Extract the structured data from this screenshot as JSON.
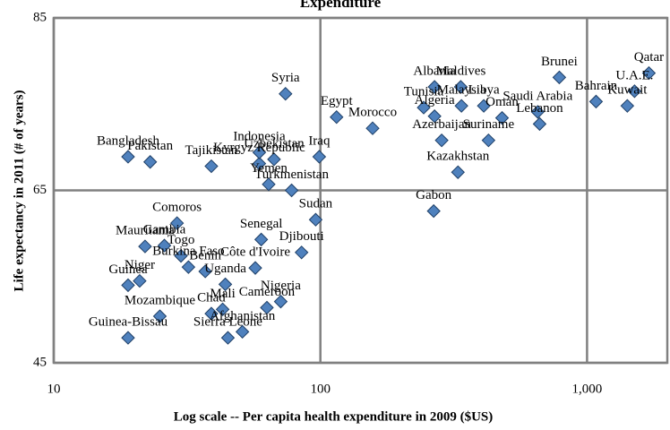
{
  "chart_data": {
    "type": "scatter",
    "title": "Expenditure",
    "x_label": "Log scale -- Per capita  health expenditure in 2009 ($US)",
    "y_label": "Life expectancy in 2011 (# of years)",
    "xscale": "log",
    "xlim": [
      10,
      2000
    ],
    "ylim": [
      45,
      85
    ],
    "xticks": [
      10,
      100,
      {
        "value": 1000,
        "label": "1,000"
      }
    ],
    "yticks": [
      45,
      65,
      85
    ],
    "grid": true,
    "color": "#4f81bd",
    "labels": [
      "Bangladesh",
      "Pakistan",
      "Tajikistan",
      "Kyrgyz Republic",
      "Indonesia",
      "Uzbekistan",
      "Yemen",
      "Turkmenistan",
      "Iraq",
      "Syria",
      "Egypt",
      "Morocco",
      "Albania",
      "Maldives",
      "Brunei",
      "Qatar",
      "U.A.E.",
      "Bahrain",
      "Kuwait",
      "Tunisia",
      "Algeria",
      "Malaysia",
      "Libya",
      "Oman",
      "Saudi Arabia",
      "Lebanon",
      "Azerbaijan",
      "Suriname",
      "Kazakhstan",
      "Gabon",
      "Sudan",
      "Senegal",
      "Djibouti",
      "Comoros",
      "Mauritania",
      "Gambia",
      "Togo",
      "Benin",
      "Burkina Faso",
      "Côte d'Ivoire",
      "Uganda",
      "Guinea",
      "Niger",
      "Mali",
      "Cameroon",
      "Nigeria",
      "Mozambique",
      "Chad",
      "Afghanistan",
      "Sierra Leone",
      "Guinea-Bissau"
    ],
    "x": [
      19,
      23,
      39,
      59,
      59,
      67,
      64,
      78,
      99,
      74,
      115,
      157,
      268,
      336,
      787,
      1706,
      1507,
      1081,
      1416,
      244,
      268,
      338,
      410,
      480,
      653,
      664,
      285,
      427,
      328,
      266,
      96,
      60,
      85,
      29,
      22,
      26,
      30,
      37,
      32,
      57,
      44,
      19,
      21,
      43,
      63,
      71,
      25,
      39,
      51,
      45,
      19
    ],
    "values": [
      68.9,
      68.3,
      67.8,
      68.1,
      69.4,
      68.6,
      65.7,
      65.0,
      68.9,
      76.2,
      73.5,
      72.2,
      77.0,
      77.0,
      78.1,
      78.6,
      76.5,
      75.3,
      74.8,
      74.6,
      73.6,
      74.8,
      74.8,
      73.4,
      74.1,
      72.7,
      70.8,
      70.8,
      67.1,
      62.6,
      61.6,
      59.3,
      57.8,
      61.2,
      58.5,
      58.6,
      57.4,
      55.6,
      56.1,
      56.0,
      54.1,
      54.0,
      54.5,
      51.2,
      51.4,
      52.1,
      50.4,
      50.7,
      48.6,
      47.9,
      47.9
    ]
  }
}
